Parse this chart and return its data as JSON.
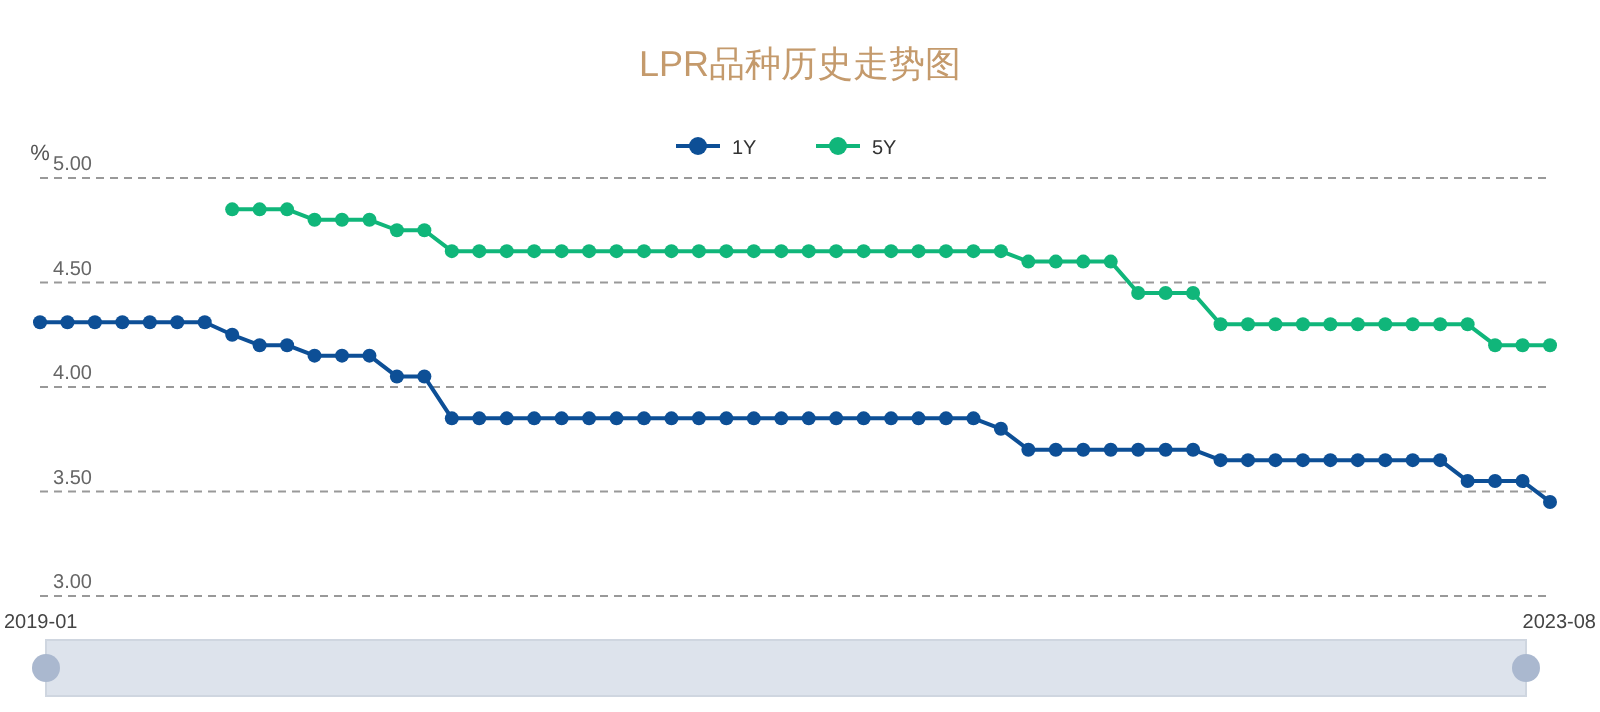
{
  "chart_data": {
    "type": "line",
    "title": "LPR品种历史走势图",
    "ylabel": "%",
    "categories": [
      "2019-01",
      null,
      null,
      null,
      null,
      null,
      null,
      null,
      null,
      null,
      null,
      null,
      null,
      null,
      null,
      null,
      null,
      null,
      null,
      null,
      null,
      null,
      null,
      null,
      null,
      null,
      null,
      null,
      null,
      null,
      null,
      null,
      null,
      null,
      null,
      null,
      null,
      null,
      null,
      null,
      null,
      null,
      null,
      null,
      null,
      null,
      null,
      null,
      null,
      null,
      null,
      null,
      null,
      null,
      null,
      "2023-08"
    ],
    "series": [
      {
        "name": "1Y",
        "color": "#0d4f96",
        "values": [
          4.31,
          4.31,
          4.31,
          4.31,
          4.31,
          4.31,
          4.31,
          4.25,
          4.2,
          4.2,
          4.15,
          4.15,
          4.15,
          4.05,
          4.05,
          3.85,
          3.85,
          3.85,
          3.85,
          3.85,
          3.85,
          3.85,
          3.85,
          3.85,
          3.85,
          3.85,
          3.85,
          3.85,
          3.85,
          3.85,
          3.85,
          3.85,
          3.85,
          3.85,
          3.85,
          3.8,
          3.7,
          3.7,
          3.7,
          3.7,
          3.7,
          3.7,
          3.7,
          3.65,
          3.65,
          3.65,
          3.65,
          3.65,
          3.65,
          3.65,
          3.65,
          3.65,
          3.55,
          3.55,
          3.55,
          3.45
        ]
      },
      {
        "name": "5Y",
        "color": "#10b67a",
        "values": [
          null,
          null,
          null,
          null,
          null,
          null,
          null,
          4.85,
          4.85,
          4.85,
          4.8,
          4.8,
          4.8,
          4.75,
          4.75,
          4.65,
          4.65,
          4.65,
          4.65,
          4.65,
          4.65,
          4.65,
          4.65,
          4.65,
          4.65,
          4.65,
          4.65,
          4.65,
          4.65,
          4.65,
          4.65,
          4.65,
          4.65,
          4.65,
          4.65,
          4.65,
          4.6,
          4.6,
          4.6,
          4.6,
          4.45,
          4.45,
          4.45,
          4.3,
          4.3,
          4.3,
          4.3,
          4.3,
          4.3,
          4.3,
          4.3,
          4.3,
          4.3,
          4.2,
          4.2,
          4.2
        ]
      }
    ],
    "ylim": [
      3,
      5
    ],
    "yticks": [
      {
        "value": 3,
        "label": "3.00"
      },
      {
        "value": 3.5,
        "label": "3.50"
      },
      {
        "value": 4,
        "label": "4.00"
      },
      {
        "value": 4.5,
        "label": "4.50"
      },
      {
        "value": 5,
        "label": "5.00"
      }
    ],
    "grid": "y",
    "legend": "top",
    "marker": "circle",
    "line_style": "solid"
  }
}
